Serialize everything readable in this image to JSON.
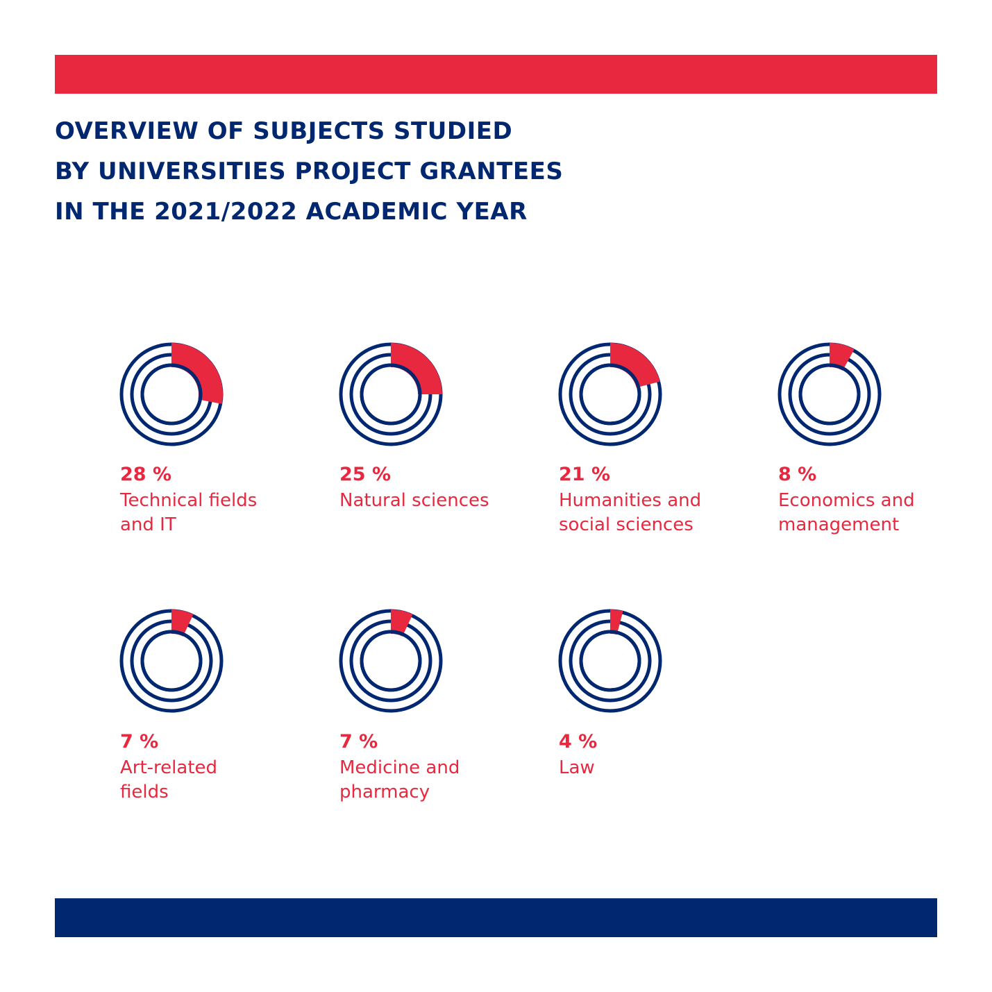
{
  "title": {
    "lines": [
      "OVERVIEW OF SUBJECTS STUDIED",
      "BY UNIVERSITIES PROJECT GRANTEES",
      "IN THE 2021/2022 ACADEMIC YEAR"
    ]
  },
  "colors": {
    "accent": "#e8283f",
    "navy": "#00276f",
    "background": "#ffffff"
  },
  "chart_data": {
    "type": "pie",
    "unit": "%",
    "items": [
      {
        "value": 28,
        "value_label": "28 %",
        "label_lines": [
          "Technical fields",
          "and IT"
        ]
      },
      {
        "value": 25,
        "value_label": "25 %",
        "label_lines": [
          "Natural sciences"
        ]
      },
      {
        "value": 21,
        "value_label": "21 %",
        "label_lines": [
          "Humanities and",
          "social sciences"
        ]
      },
      {
        "value": 8,
        "value_label": "8 %",
        "label_lines": [
          "Economics and",
          "management"
        ]
      },
      {
        "value": 7,
        "value_label": "7 %",
        "label_lines": [
          "Art-related",
          "fields"
        ]
      },
      {
        "value": 7,
        "value_label": "7 %",
        "label_lines": [
          "Medicine and",
          "pharmacy"
        ]
      },
      {
        "value": 4,
        "value_label": "4 %",
        "label_lines": [
          "Law"
        ]
      }
    ]
  }
}
